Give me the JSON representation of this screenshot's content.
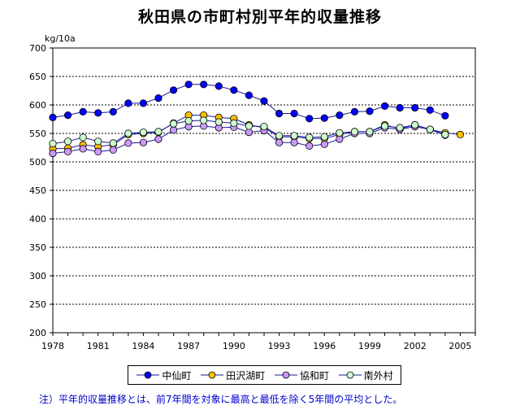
{
  "chart_data": {
    "type": "line",
    "title": "秋田県の市町村別平年的収量推移",
    "ylabel": "kg/10a",
    "xlabel": "",
    "ylim": [
      200,
      700
    ],
    "yticks": [
      200,
      250,
      300,
      350,
      400,
      450,
      500,
      550,
      600,
      650,
      700
    ],
    "ytick_labels": [
      "200",
      "250",
      "300",
      "350",
      "400",
      "450",
      "500",
      "550",
      "600",
      "650",
      "700"
    ],
    "xlim": [
      1978,
      2006
    ],
    "xticks": [
      1978,
      1981,
      1984,
      1987,
      1990,
      1993,
      1996,
      1999,
      2002,
      2005
    ],
    "xtick_labels": [
      "1978",
      "1981",
      "1984",
      "1987",
      "1990",
      "1993",
      "1996",
      "1999",
      "2002",
      "2005"
    ],
    "grid": true,
    "legend_position": "bottom",
    "series": [
      {
        "name": "中仙町",
        "color": "#0000ff",
        "x": [
          1978,
          1979,
          1980,
          1981,
          1982,
          1983,
          1984,
          1985,
          1986,
          1987,
          1988,
          1989,
          1990,
          1991,
          1992,
          1993,
          1994,
          1995,
          1996,
          1997,
          1998,
          1999,
          2000,
          2001,
          2002,
          2003,
          2004
        ],
        "values": [
          578,
          582,
          588,
          586,
          588,
          603,
          603,
          612,
          626,
          636,
          636,
          633,
          626,
          617,
          607,
          585,
          585,
          576,
          577,
          582,
          588,
          589,
          598,
          595,
          595,
          591,
          581
        ]
      },
      {
        "name": "田沢湖町",
        "color": "#ffc000",
        "x": [
          1978,
          1979,
          1980,
          1981,
          1982,
          1983,
          1984,
          1985,
          1986,
          1987,
          1988,
          1989,
          1990,
          1991,
          1992,
          1993,
          1994,
          1995,
          1996,
          1997,
          1998,
          1999,
          2000,
          2001,
          2002,
          2003,
          2004,
          2005
        ],
        "values": [
          523,
          524,
          530,
          527,
          530,
          548,
          550,
          552,
          568,
          582,
          582,
          578,
          576,
          565,
          560,
          544,
          544,
          541,
          541,
          548,
          553,
          553,
          565,
          558,
          565,
          557,
          551,
          548
        ]
      },
      {
        "name": "協和町",
        "color": "#cc99ff",
        "x": [
          1978,
          1979,
          1980,
          1981,
          1982,
          1983,
          1984,
          1985,
          1986,
          1987,
          1988,
          1989,
          1990,
          1991,
          1992,
          1993,
          1994,
          1995,
          1996,
          1997,
          1998,
          1999,
          2000,
          2001,
          2002,
          2003,
          2004
        ],
        "values": [
          515,
          518,
          523,
          518,
          521,
          533,
          534,
          540,
          556,
          562,
          563,
          560,
          561,
          552,
          555,
          534,
          534,
          528,
          531,
          540,
          550,
          550,
          560,
          557,
          562,
          557,
          547
        ]
      },
      {
        "name": "南外村",
        "color": "#ccffcc",
        "x": [
          1978,
          1979,
          1980,
          1981,
          1982,
          1983,
          1984,
          1985,
          1986,
          1987,
          1988,
          1989,
          1990,
          1991,
          1992,
          1993,
          1994,
          1995,
          1996,
          1997,
          1998,
          1999,
          2000,
          2001,
          2002,
          2003,
          2004
        ],
        "values": [
          532,
          536,
          543,
          536,
          533,
          550,
          552,
          553,
          567,
          572,
          573,
          570,
          568,
          563,
          562,
          546,
          546,
          543,
          544,
          551,
          553,
          553,
          563,
          560,
          565,
          557,
          548
        ]
      }
    ]
  },
  "footnote": "注）平年的収量推移とは、前7年間を対象に最高と最低を除く5年間の平均とした。"
}
